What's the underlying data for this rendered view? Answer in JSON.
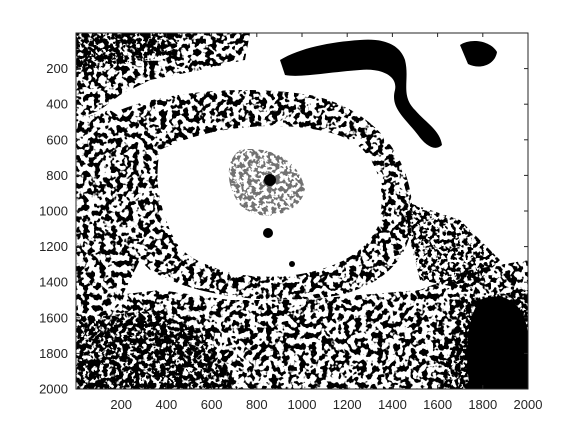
{
  "figure": {
    "background": "#ffffff",
    "image": {
      "description_kind": "binary-thresholded-image",
      "foreground_color": "#000000",
      "background_color": "#ffffff"
    },
    "x_axis": {
      "min": 0,
      "max": 2000,
      "ticks": [
        200,
        400,
        600,
        800,
        1000,
        1200,
        1400,
        1600,
        1800,
        2000
      ],
      "tick_labels": [
        "200",
        "400",
        "600",
        "800",
        "1000",
        "1200",
        "1400",
        "1600",
        "1800",
        "2000"
      ]
    },
    "y_axis": {
      "min": 0,
      "max": 2000,
      "reversed": true,
      "ticks": [
        200,
        400,
        600,
        800,
        1000,
        1200,
        1400,
        1600,
        1800,
        2000
      ],
      "tick_labels": [
        "200",
        "400",
        "600",
        "800",
        "1000",
        "1200",
        "1400",
        "1600",
        "1800",
        "2000"
      ]
    },
    "axis_color": "#262626"
  }
}
